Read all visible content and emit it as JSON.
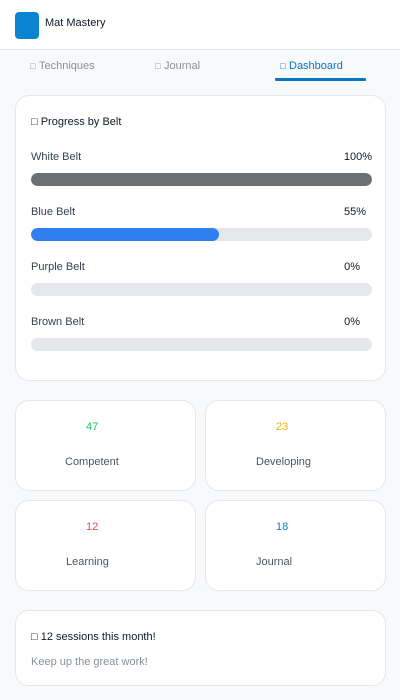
{
  "app": {
    "title": "Mat Mastery"
  },
  "tabs": [
    {
      "label": "Techniques",
      "icon": "□"
    },
    {
      "label": "Journal",
      "icon": "□"
    },
    {
      "label": "Dashboard",
      "icon": "□",
      "active": true
    }
  ],
  "progress": {
    "icon": "□",
    "title": "Progress by Belt",
    "belts": [
      {
        "name": "White Belt",
        "percent_label": "100%",
        "value": 100,
        "color": "#6b6f76"
      },
      {
        "name": "Blue Belt",
        "percent_label": "55%",
        "value": 55,
        "color": "#2f7ff0"
      },
      {
        "name": "Purple Belt",
        "percent_label": "0%",
        "value": 0,
        "color": "#7c3aed"
      },
      {
        "name": "Brown Belt",
        "percent_label": "0%",
        "value": 0,
        "color": "#8b5a2b"
      }
    ]
  },
  "stats": [
    {
      "value": "47",
      "label": "Competent",
      "color": "#22c55e"
    },
    {
      "value": "23",
      "label": "Developing",
      "color": "#eab308"
    },
    {
      "value": "12",
      "label": "Learning",
      "color": "#ef4444"
    },
    {
      "value": "18",
      "label": "Journal",
      "color": "#0a84d0"
    }
  ],
  "sessions": {
    "icon": "□",
    "title": "12 sessions this month!",
    "subtitle": "Keep up the great work!"
  },
  "colors": {
    "accent": "#0a74c4",
    "logo": "#0a84d0"
  }
}
